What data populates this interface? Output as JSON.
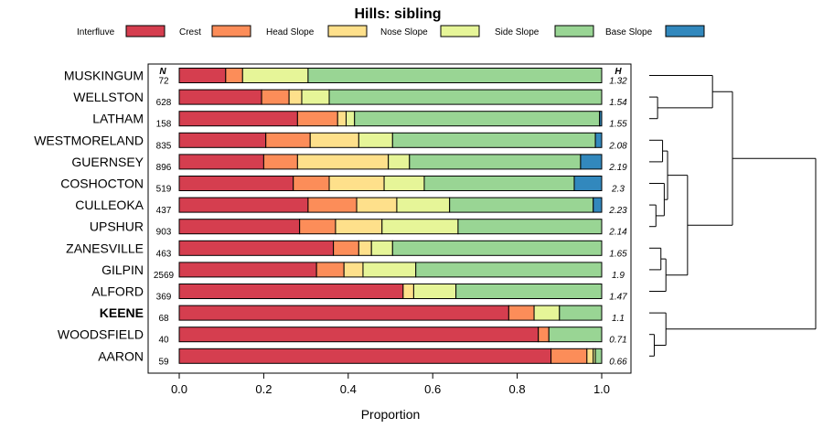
{
  "chart_data": {
    "type": "bar",
    "stacked": true,
    "orientation": "horizontal",
    "title": "Hills: sibling",
    "xlabel": "Proportion",
    "ylabel": "",
    "xlim": [
      0,
      1
    ],
    "x_ticks": [
      "0.0",
      "0.2",
      "0.4",
      "0.6",
      "0.8",
      "1.0"
    ],
    "n_header": "N",
    "h_header": "H",
    "legend": [
      {
        "name": "Interfluve",
        "color": "#D53E4F"
      },
      {
        "name": "Crest",
        "color": "#FC8D59"
      },
      {
        "name": "Head Slope",
        "color": "#FEE08B"
      },
      {
        "name": "Nose Slope",
        "color": "#E6F598"
      },
      {
        "name": "Side Slope",
        "color": "#99D594"
      },
      {
        "name": "Base Slope",
        "color": "#3288BD"
      }
    ],
    "highlighted": "KEENE",
    "categories": [
      "MUSKINGUM",
      "WELLSTON",
      "LATHAM",
      "WESTMORELAND",
      "GUERNSEY",
      "COSHOCTON",
      "CULLEOKA",
      "UPSHUR",
      "ZANESVILLE",
      "GILPIN",
      "ALFORD",
      "KEENE",
      "WOODSFIELD",
      "AARON"
    ],
    "n": [
      "72",
      "628",
      "158",
      "835",
      "896",
      "519",
      "437",
      "903",
      "463",
      "2569",
      "369",
      "68",
      "40",
      "59"
    ],
    "h": [
      "1.32",
      "1.54",
      "1.55",
      "2.08",
      "2.19",
      "2.3",
      "2.23",
      "2.14",
      "1.65",
      "1.9",
      "1.47",
      "1.1",
      "0.71",
      "0.66"
    ],
    "series": [
      {
        "name": "Interfluve",
        "values": [
          0.11,
          0.195,
          0.28,
          0.205,
          0.2,
          0.27,
          0.305,
          0.285,
          0.365,
          0.325,
          0.53,
          0.78,
          0.85,
          0.88
        ]
      },
      {
        "name": "Crest",
        "values": [
          0.04,
          0.065,
          0.095,
          0.105,
          0.08,
          0.085,
          0.115,
          0.085,
          0.06,
          0.065,
          0.0,
          0.06,
          0.025,
          0.085
        ]
      },
      {
        "name": "Head Slope",
        "values": [
          0.0,
          0.03,
          0.02,
          0.115,
          0.215,
          0.13,
          0.095,
          0.11,
          0.03,
          0.045,
          0.025,
          0.0,
          0.0,
          0.015
        ]
      },
      {
        "name": "Nose Slope",
        "values": [
          0.155,
          0.065,
          0.02,
          0.08,
          0.05,
          0.095,
          0.125,
          0.18,
          0.05,
          0.125,
          0.1,
          0.06,
          0.0,
          0.005
        ]
      },
      {
        "name": "Side Slope",
        "values": [
          0.695,
          0.645,
          0.58,
          0.48,
          0.405,
          0.355,
          0.34,
          0.34,
          0.495,
          0.44,
          0.345,
          0.1,
          0.125,
          0.015
        ]
      },
      {
        "name": "Base Slope",
        "values": [
          0.0,
          0.0,
          0.005,
          0.015,
          0.05,
          0.065,
          0.02,
          0.0,
          0.0,
          0.0,
          0.0,
          0.0,
          0.0,
          0.0
        ]
      }
    ],
    "dendrogram": {
      "leaves": [
        "MUSKINGUM",
        "WELLSTON",
        "LATHAM",
        "WESTMORELAND",
        "GUERNSEY",
        "COSHOCTON",
        "CULLEOKA",
        "UPSHUR",
        "ZANESVILLE",
        "GILPIN",
        "ALFORD",
        "KEENE",
        "WOODSFIELD",
        "AARON"
      ],
      "merges": [
        {
          "a": "L1",
          "b": "L2",
          "h": 0.05
        },
        {
          "a": "L0",
          "b": "M0",
          "h": 0.38
        },
        {
          "a": "L3",
          "b": "L4",
          "h": 0.08
        },
        {
          "a": "L6",
          "b": "L7",
          "h": 0.04
        },
        {
          "a": "L5",
          "b": "M3",
          "h": 0.09
        },
        {
          "a": "M2",
          "b": "M4",
          "h": 0.11
        },
        {
          "a": "L8",
          "b": "L9",
          "h": 0.07
        },
        {
          "a": "M6",
          "b": "L10",
          "h": 0.1
        },
        {
          "a": "M5",
          "b": "M7",
          "h": 0.23
        },
        {
          "a": "M1",
          "b": "M8",
          "h": 0.5
        },
        {
          "a": "L12",
          "b": "L13",
          "h": 0.03
        },
        {
          "a": "L11",
          "b": "M10",
          "h": 0.1
        },
        {
          "a": "M9",
          "b": "M11",
          "h": 1.0
        }
      ]
    }
  }
}
